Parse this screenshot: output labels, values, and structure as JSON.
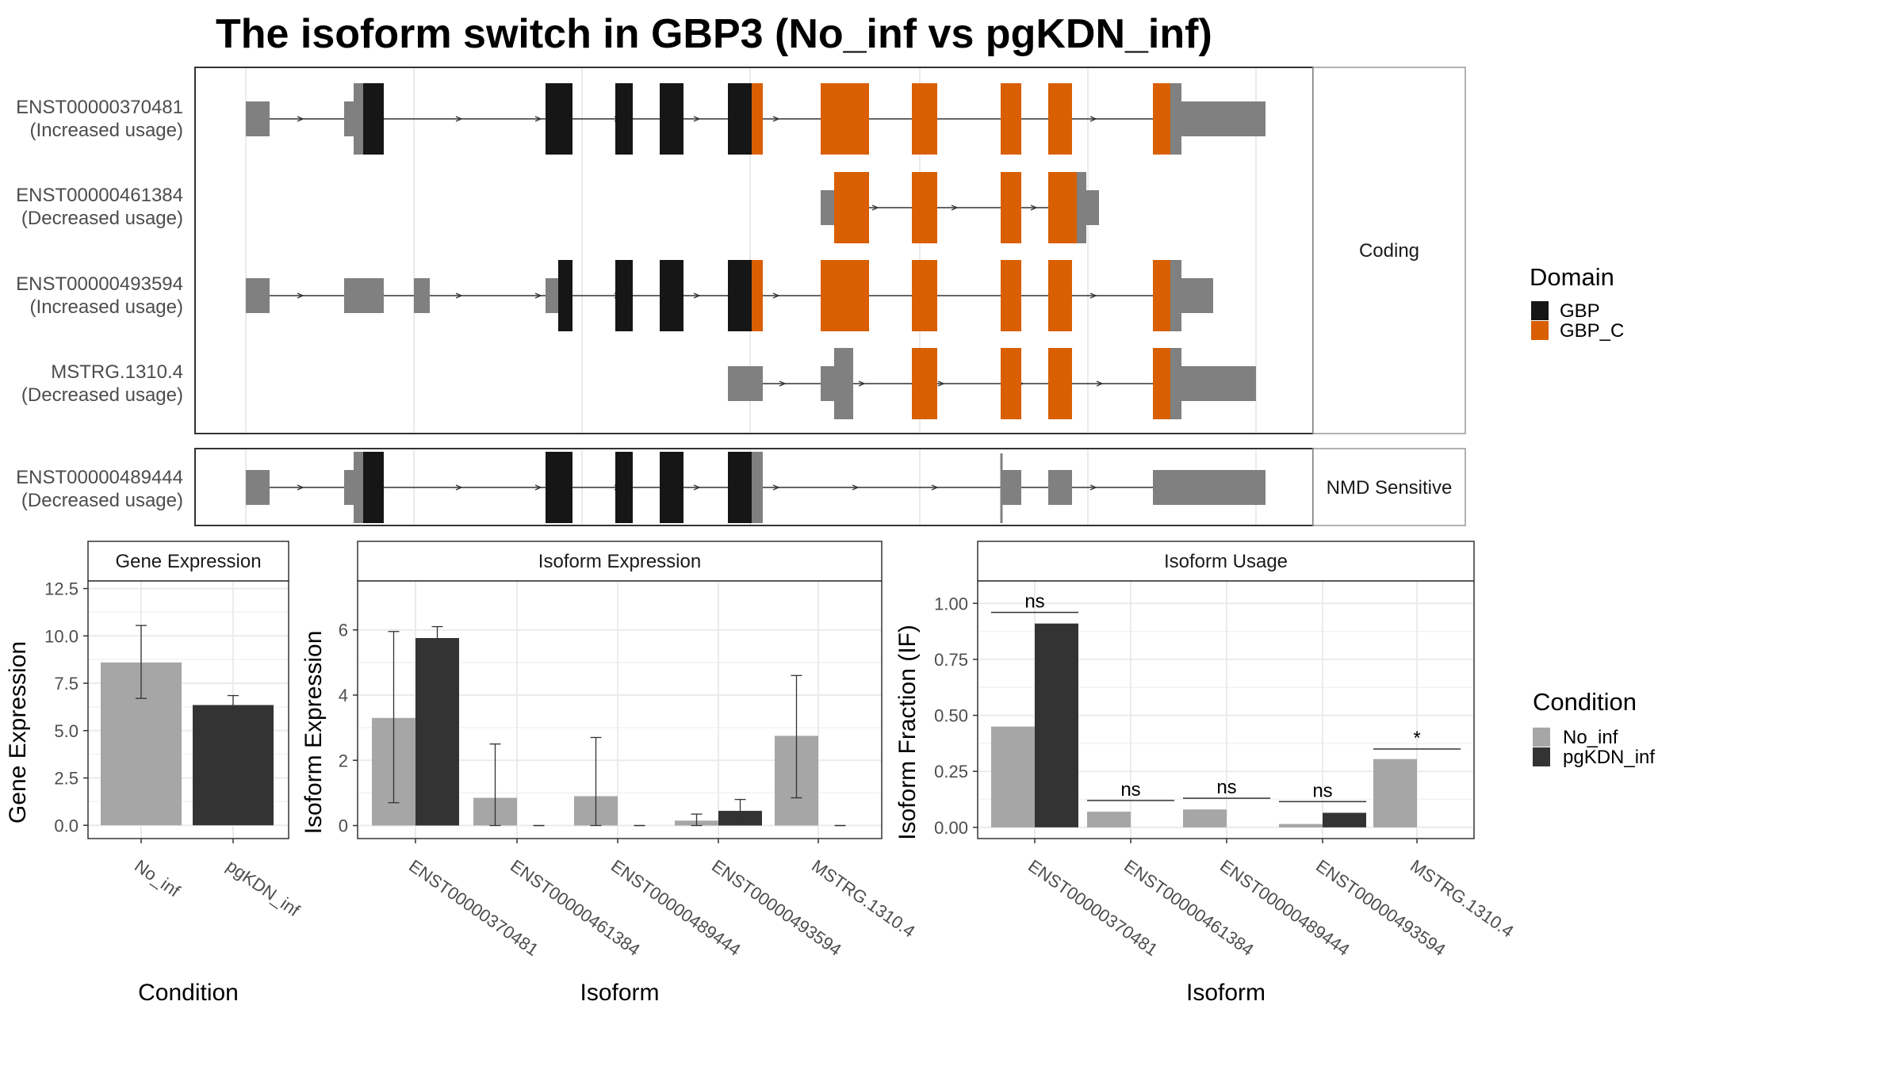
{
  "title": "The isoform switch in GBP3 (No_inf vs pgKDN_inf)",
  "colors": {
    "gbp": "#161616",
    "gbp_c": "#d95f02",
    "utr": "#808080",
    "no_inf": "#a6a6a6",
    "pgkdn_inf": "#333333",
    "grid": "#ebebeb",
    "strip": "#ffffff"
  },
  "structure": {
    "groups": [
      {
        "label": "Coding",
        "transcripts": [
          {
            "id": "ENST00000370481",
            "usage": "(Increased usage)"
          },
          {
            "id": "ENST00000461384",
            "usage": "(Decreased usage)"
          },
          {
            "id": "ENST00000493594",
            "usage": "(Increased usage)"
          },
          {
            "id": "MSTRG.1310.4",
            "usage": "(Decreased usage)"
          }
        ]
      },
      {
        "label": "NMD Sensitive",
        "transcripts": [
          {
            "id": "ENST00000489444",
            "usage": "(Decreased usage)"
          }
        ]
      }
    ]
  },
  "domain_legend": {
    "title": "Domain",
    "items": [
      {
        "label": "GBP",
        "color": "#161616"
      },
      {
        "label": "GBP_C",
        "color": "#d95f02"
      }
    ]
  },
  "condition_legend": {
    "title": "Condition",
    "items": [
      {
        "label": "No_inf",
        "color": "#a6a6a6"
      },
      {
        "label": "pgKDN_inf",
        "color": "#333333"
      }
    ]
  },
  "chart_data": [
    {
      "type": "bar",
      "title": "Gene Expression",
      "xlabel": "Condition",
      "ylabel": "Gene Expression",
      "categories": [
        "No_inf",
        "pgKDN_inf"
      ],
      "values": [
        8.6,
        6.35
      ],
      "error_low": [
        6.7,
        5.85
      ],
      "error_high": [
        10.55,
        6.85
      ],
      "ylim": [
        -0.7,
        12.9
      ],
      "yticks": [
        "0.0",
        "2.5",
        "5.0",
        "7.5",
        "10.0",
        "12.5"
      ],
      "grid": true
    },
    {
      "type": "bar",
      "title": "Isoform Expression",
      "xlabel": "Isoform",
      "ylabel": "Isoform Expression",
      "categories": [
        "ENST00000370481",
        "ENST00000461384",
        "ENST00000489444",
        "ENST00000493594",
        "MSTRG.1310.4"
      ],
      "series": [
        {
          "name": "No_inf",
          "values": [
            3.3,
            0.85,
            0.9,
            0.15,
            2.75
          ],
          "error_low": [
            0.7,
            0.0,
            0.0,
            0.0,
            0.85
          ],
          "error_high": [
            5.95,
            2.5,
            2.7,
            0.35,
            4.6
          ]
        },
        {
          "name": "pgKDN_inf",
          "values": [
            5.75,
            0.0,
            0.0,
            0.45,
            0.0
          ],
          "error_low": [
            5.4,
            0.0,
            0.0,
            0.1,
            0.0
          ],
          "error_high": [
            6.1,
            0.0,
            0.0,
            0.8,
            0.0
          ]
        }
      ],
      "ylim": [
        -0.4,
        7.5
      ],
      "yticks": [
        "0",
        "2",
        "4",
        "6"
      ],
      "grid": true
    },
    {
      "type": "bar",
      "title": "Isoform Usage",
      "xlabel": "Isoform",
      "ylabel": "Isoform Fraction (IF)",
      "categories": [
        "ENST00000370481",
        "ENST00000461384",
        "ENST00000489444",
        "ENST00000493594",
        "MSTRG.1310.4"
      ],
      "series": [
        {
          "name": "No_inf",
          "values": [
            0.45,
            0.07,
            0.08,
            0.015,
            0.305
          ]
        },
        {
          "name": "pgKDN_inf",
          "values": [
            0.91,
            0.0,
            0.0,
            0.065,
            0.0
          ]
        }
      ],
      "significance": [
        {
          "label": "ns",
          "y": 0.96
        },
        {
          "label": "ns",
          "y": 0.12
        },
        {
          "label": "ns",
          "y": 0.13
        },
        {
          "label": "ns",
          "y": 0.115
        },
        {
          "label": "*",
          "y": 0.35
        }
      ],
      "ylim": [
        -0.05,
        1.1
      ],
      "yticks": [
        "0.00",
        "0.25",
        "0.50",
        "0.75",
        "1.00"
      ],
      "grid": true
    }
  ]
}
